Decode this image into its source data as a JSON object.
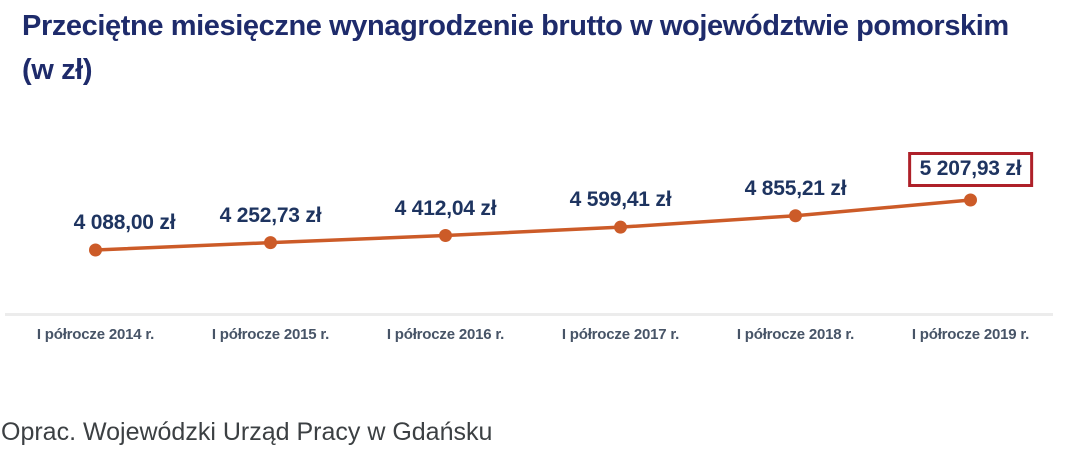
{
  "title": {
    "line1": "Przeciętne miesięczne wynagrodzenie brutto w województwie pomorskim",
    "line2": "(w zł)"
  },
  "source": "Oprac. Wojewódzki Urząd Pracy w Gdańsku",
  "chart_data": {
    "type": "line",
    "title": "Przeciętne miesięczne wynagrodzenie brutto w województwie pomorskim (w zł)",
    "categories": [
      "I półrocze 2014 r.",
      "I półrocze 2015 r.",
      "I półrocze 2016 r.",
      "I półrocze 2017 r.",
      "I półrocze 2018 r.",
      "I półrocze 2019 r."
    ],
    "values": [
      4088.0,
      4252.73,
      4412.04,
      4599.41,
      4855.21,
      5207.93
    ],
    "data_labels": [
      "4 088,00 zł",
      "4 252,73 zł",
      "4 412,04 zł",
      "4 599,41 zł",
      "4 855,21 zł",
      "5 207,93 zł"
    ],
    "highlighted_index": 5,
    "unit": "zł",
    "grid": false,
    "legend": false,
    "y_axis_visible": false,
    "colors": {
      "line": "#cc5b28",
      "marker": "#cc5b28",
      "data_label_text": "#1e3460",
      "highlight_box_border": "#ae2029",
      "axis_label_text": "#475467",
      "axis_line": "#ececec",
      "title_text": "#1e2b6b",
      "source_text": "#3c4043"
    }
  }
}
